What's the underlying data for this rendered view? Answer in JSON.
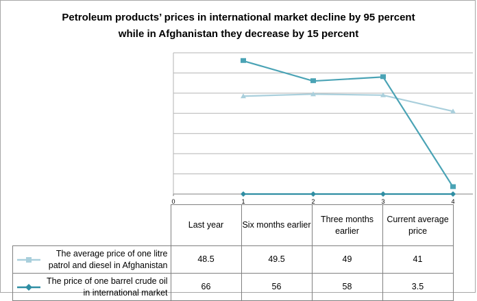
{
  "chart_data": {
    "type": "line",
    "title": "Petroleum products’ prices in international market decline by 95 percent while in Afghanistan they decrease by 15 percent",
    "title_lines": [
      "Petroleum products’ prices in international market decline by 95 percent",
      "while in Afghanistan they decrease by 15 percent"
    ],
    "x": [
      1,
      2,
      3,
      4
    ],
    "x_tick_labels": [
      "0",
      "1",
      "2",
      "3",
      "4"
    ],
    "xlim": [
      0,
      4
    ],
    "ylim": [
      0,
      70
    ],
    "grid": true,
    "categories": [
      "Last year",
      "Six months earlier",
      "Three months earlier",
      "Current average price"
    ],
    "series": [
      {
        "name": "The average price of one litre patrol and diesel in Afghanistan",
        "values": [
          48.5,
          49.5,
          49,
          41
        ],
        "color": "#a9cfdc",
        "marker": "triangle"
      },
      {
        "name": "The price of one barrel crude oil in international market",
        "values": [
          66,
          56,
          58,
          3.5
        ],
        "color": "#4aa3b5",
        "marker": "square"
      },
      {
        "name": "",
        "values": [
          0,
          0,
          0,
          0
        ],
        "color": "#2f8ea3",
        "marker": "diamond"
      }
    ],
    "table": {
      "headers": [
        "Last year",
        "Six months earlier",
        "Three months earlier",
        "Current average price"
      ],
      "rows": [
        {
          "label": "The average price of one litre patrol and diesel in Afghanistan",
          "values": [
            "48.5",
            "49.5",
            "49",
            "41"
          ]
        },
        {
          "label": "The price of one barrel crude oil in international market",
          "values": [
            "66",
            "56",
            "58",
            "3.5"
          ]
        }
      ]
    }
  },
  "colors": {
    "grid": "#b3b3b3",
    "axis": "#808080",
    "legend_series_1": "#a9cfdc",
    "legend_series_2": "#2f8ea3"
  }
}
